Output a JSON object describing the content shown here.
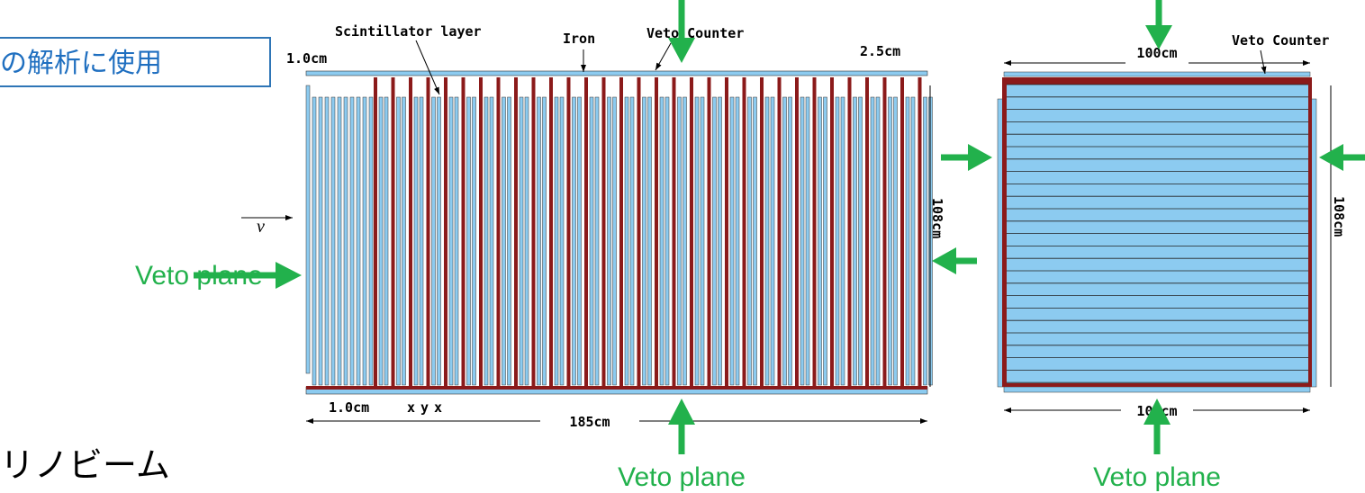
{
  "banner": {
    "text": "の解析に使用"
  },
  "side_view": {
    "scintillator_label": "Scintillator layer",
    "iron_label": "Iron",
    "veto_counter_label": "Veto Counter",
    "gap_label_top": "1.0cm",
    "pitch_label": "2.5cm",
    "neutrino_label": "ν",
    "height_label": "108cm",
    "gap_label_bottom": "1.0cm",
    "layer_labels": [
      "x",
      "y",
      "x"
    ],
    "length_label": "185cm"
  },
  "front_view": {
    "width_label_top": "100cm",
    "veto_counter_label": "Veto Counter",
    "height_label": "108cm",
    "width_label_bottom": "100cm"
  },
  "veto_labels": {
    "left": "Veto plane",
    "bottom_side": "Veto plane",
    "bottom_front": "Veto plane"
  },
  "footer": {
    "text": "リノビーム"
  }
}
